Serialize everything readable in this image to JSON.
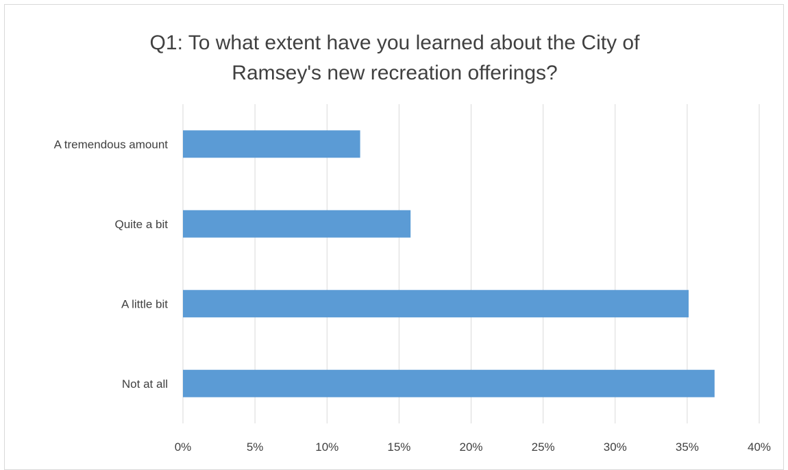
{
  "chart_data": {
    "type": "bar",
    "orientation": "horizontal",
    "title_lines": [
      "Q1: To what extent have you learned about the City of",
      "Ramsey's new recreation offerings?"
    ],
    "categories": [
      "A tremendous amount",
      "Quite a bit",
      "A little bit",
      "Not at all"
    ],
    "values": [
      12.3,
      15.8,
      35.1,
      36.9
    ],
    "value_unit": "%",
    "xlim": [
      0,
      40
    ],
    "xticks": [
      "0%",
      "5%",
      "10%",
      "15%",
      "20%",
      "25%",
      "30%",
      "35%",
      "40%"
    ],
    "grid": "vertical",
    "legend": "none"
  },
  "colors": {
    "bar": "#5b9bd5",
    "grid": "#d9d9d9",
    "text": "#404040"
  }
}
